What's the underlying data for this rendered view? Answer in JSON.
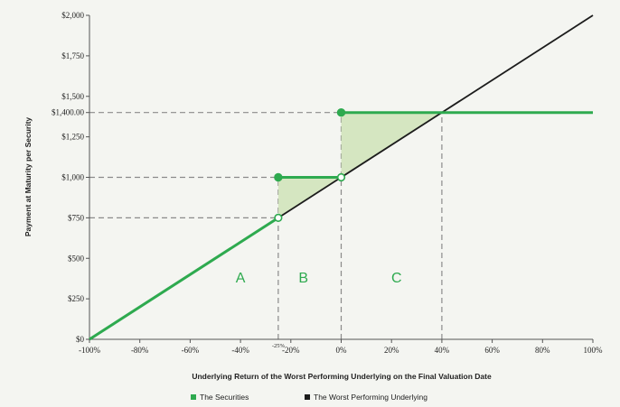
{
  "chart_data": {
    "type": "line",
    "xlabel": "Underlying Return of the Worst Performing Underlying on the Final Valuation Date",
    "ylabel": "Payment at Maturity per Security",
    "xlim": [
      -100,
      100
    ],
    "ylim": [
      0,
      2000
    ],
    "grid": false,
    "legend_position": "bottom",
    "x_ticks": [
      "-100%",
      "-80%",
      "-60%",
      "-40%",
      "-20%",
      "0%",
      "20%",
      "40%",
      "60%",
      "80%",
      "100%"
    ],
    "x_tick_values": [
      -100,
      -80,
      -60,
      -40,
      -20,
      0,
      20,
      40,
      60,
      80,
      100
    ],
    "y_ticks": [
      "$0",
      "$250",
      "$500",
      "$750",
      "$1,000",
      "$1,250",
      "$1,500",
      "$1,750",
      "$2,000"
    ],
    "y_tick_values": [
      0,
      250,
      500,
      750,
      1000,
      1250,
      1500,
      1750,
      2000
    ],
    "extra_y_tick": {
      "label": "$1,400.00",
      "value": 1400
    },
    "extra_x_tick": {
      "label": "-25%",
      "value": -25
    },
    "series": [
      {
        "name": "The Securities",
        "color": "#2eaa4f",
        "segments": [
          {
            "x": [
              -100,
              -25
            ],
            "y": [
              0,
              750
            ]
          },
          {
            "x": [
              -25,
              0
            ],
            "y": [
              1000,
              1000
            ]
          },
          {
            "x": [
              0,
              100
            ],
            "y": [
              1400,
              1400
            ]
          }
        ],
        "filled_points": [
          {
            "x": -25,
            "y": 1000
          },
          {
            "x": 0,
            "y": 1400
          }
        ],
        "open_points": [
          {
            "x": -25,
            "y": 750
          },
          {
            "x": 0,
            "y": 1000
          }
        ]
      },
      {
        "name": "The Worst Performing Underlying",
        "color": "#1c1c1c",
        "x": [
          -100,
          100
        ],
        "y": [
          0,
          2000
        ]
      }
    ],
    "shaded_regions": [
      {
        "points": [
          [
            -25,
            750
          ],
          [
            -25,
            1000
          ],
          [
            0,
            1000
          ]
        ]
      },
      {
        "points": [
          [
            0,
            1000
          ],
          [
            0,
            1400
          ],
          [
            40,
            1400
          ]
        ]
      }
    ],
    "reference_lines": [
      {
        "type": "h",
        "y": 1400,
        "x_from": -100,
        "x_to": 40
      },
      {
        "type": "h",
        "y": 1000,
        "x_from": -100,
        "x_to": -25
      },
      {
        "type": "h",
        "y": 750,
        "x_from": -100,
        "x_to": -25
      },
      {
        "type": "v",
        "x": -25,
        "y_from": 0,
        "y_to": 1000
      },
      {
        "type": "v",
        "x": 0,
        "y_from": 0,
        "y_to": 1400
      },
      {
        "type": "v",
        "x": 40,
        "y_from": 0,
        "y_to": 1400
      }
    ],
    "region_labels": [
      {
        "text": "A",
        "x": -40,
        "y": 350
      },
      {
        "text": "B",
        "x": -15,
        "y": 350
      },
      {
        "text": "C",
        "x": 22,
        "y": 350
      }
    ],
    "legend": [
      "The Securities",
      "The Worst Performing Underlying"
    ]
  }
}
